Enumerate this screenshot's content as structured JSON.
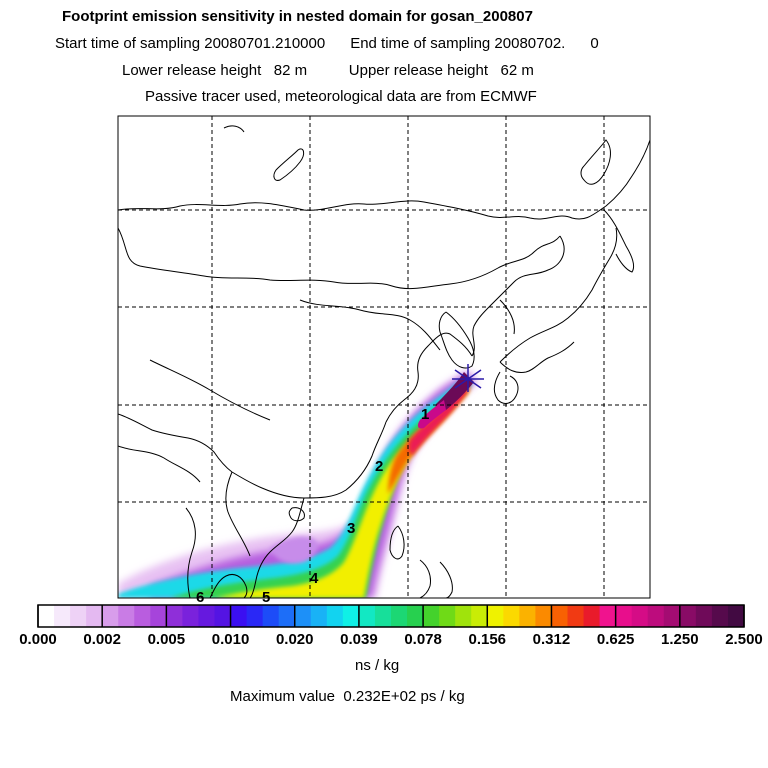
{
  "header": {
    "title": "Footprint emission sensitivity in nested domain for gosan_200807",
    "line2": "Start time of sampling 20080701.210000      End time of sampling 20080702.      0",
    "line3": "Lower release height   82 m          Upper release height   62 m",
    "line4": "Passive tracer used, meteorological data are from ECMWF"
  },
  "map": {
    "grid": "on",
    "release_site_marker": "star-icon",
    "day_markers": [
      "1",
      "2",
      "3",
      "4",
      "5",
      "6"
    ]
  },
  "colorbar": {
    "tick_labels": [
      "0.000",
      "0.002",
      "0.005",
      "0.010",
      "0.020",
      "0.039",
      "0.078",
      "0.156",
      "0.312",
      "0.625",
      "1.250",
      "2.500"
    ],
    "colors": [
      "#ffffff",
      "#f6e9fb",
      "#eed2f6",
      "#e4b9f1",
      "#d89deb",
      "#c97ce5",
      "#b95ddf",
      "#a644db",
      "#8f2fd9",
      "#7a22dc",
      "#6619df",
      "#5414e3",
      "#3b0ff1",
      "#2a28f6",
      "#1d4cf8",
      "#1d6ef8",
      "#1d90f8",
      "#19b2f6",
      "#12d3f0",
      "#0ff0e6",
      "#12e8c3",
      "#17df9a",
      "#1cd774",
      "#27d04f",
      "#44d22c",
      "#6fda17",
      "#a0e30c",
      "#c9ec06",
      "#eff200",
      "#fbd900",
      "#fbb200",
      "#fb8a00",
      "#f86103",
      "#f13a13",
      "#e91b2b",
      "#f0138e",
      "#e80e8c",
      "#d50c86",
      "#bd0c7d",
      "#a40c72",
      "#890b66",
      "#6f0a59",
      "#560a4c",
      "#420a42"
    ],
    "units": "ns / kg",
    "max_value_text": "Maximum value  0.232E+02 ps / kg"
  }
}
